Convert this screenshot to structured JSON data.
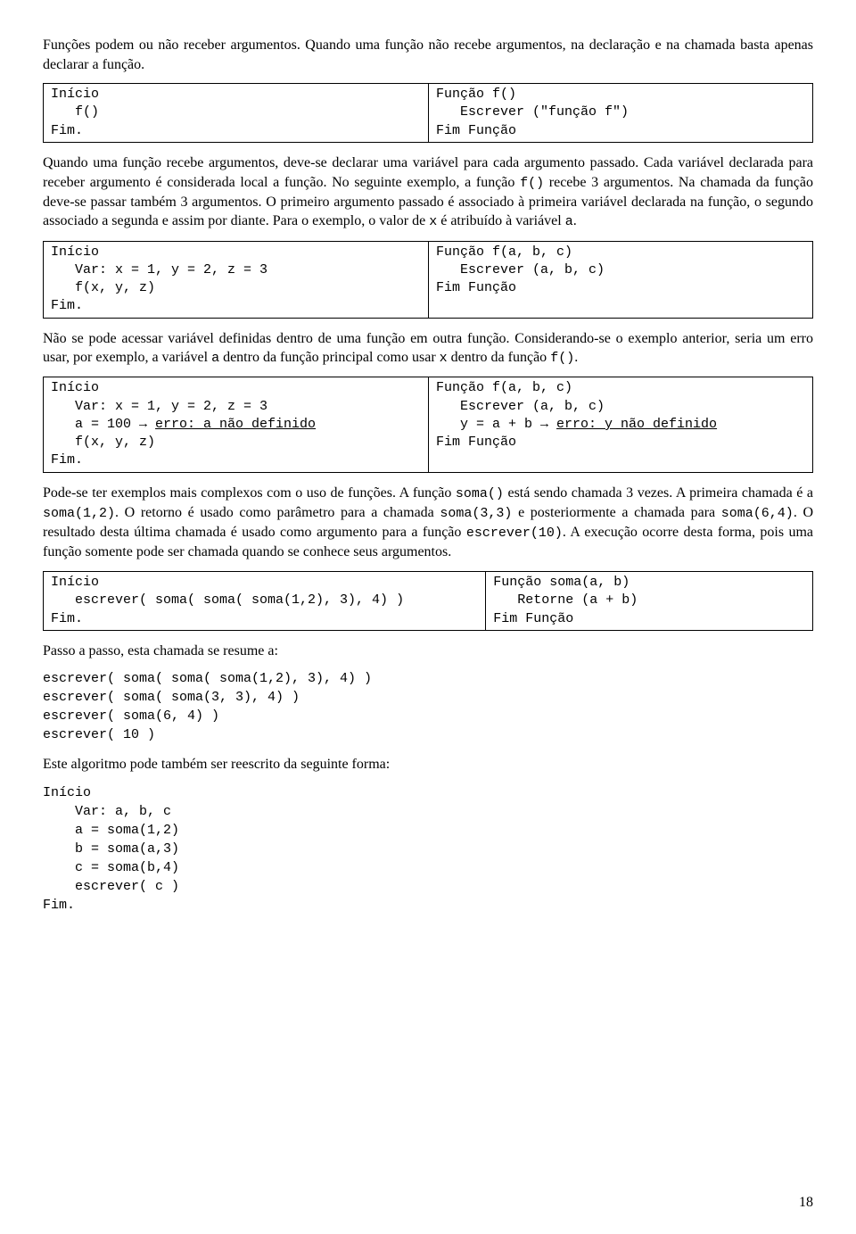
{
  "para1": "Funções podem ou não receber argumentos. Quando uma função não recebe argumentos, na declaração e na chamada basta apenas declarar a função.",
  "box1": {
    "left": "Início\n   f()\nFim.",
    "right": "Função f()\n   Escrever (\"função f\")\nFim Função"
  },
  "para2_a": "Quando uma função recebe argumentos, deve-se declarar uma variável para cada argumento passado. Cada variável declarada para receber argumento é considerada local a função. No seguinte exemplo, a função ",
  "para2_code1": "f()",
  "para2_b": " recebe 3 argumentos. Na chamada da função deve-se passar também 3 argumentos. O primeiro argumento passado é associado à primeira variável declarada na função, o segundo associado a segunda e assim por diante. Para o exemplo, o valor de ",
  "para2_code2": "x",
  "para2_c": " é atribuído à variável ",
  "para2_code3": "a",
  "para2_d": ".",
  "box2": {
    "left": "Início\n   Var: x = 1, y = 2, z = 3\n   f(x, y, z)\nFim.",
    "right": "Função f(a, b, c)\n   Escrever (a, b, c)\nFim Função"
  },
  "para3_a": "Não se pode acessar variável definidas dentro de uma função em outra função. Considerando-se o exemplo anterior, seria um erro usar, por exemplo, a variável ",
  "para3_code1": "a",
  "para3_b": " dentro da função principal como usar ",
  "para3_code2": "x",
  "para3_c": " dentro da função ",
  "para3_code3": "f()",
  "para3_d": ".",
  "box3": {
    "left": {
      "l1": "Início",
      "l2": "   Var: x = 1, y = 2, z = 3",
      "l3a": "   a = 100 → ",
      "l3b": "erro: a não definido",
      "l4": "   f(x, y, z)",
      "l5": "Fim."
    },
    "right": {
      "r1": "Função f(a, b, c)",
      "r2": "   Escrever (a, b, c)",
      "r3a": "   y = a + b → ",
      "r3b": "erro: y não definido",
      "r4": "Fim Função"
    }
  },
  "para4_a": "Pode-se ter exemplos mais complexos com o uso de funções. A função ",
  "para4_code1": "soma()",
  "para4_b": " está sendo chamada 3 vezes. A primeira chamada é a ",
  "para4_code2": "soma(1,2)",
  "para4_c": ". O retorno é usado como parâmetro para a chamada ",
  "para4_code3": "soma(3,3)",
  "para4_d": " e posteriormente a chamada para ",
  "para4_code4": "soma(6,4)",
  "para4_e": ". O resultado desta última chamada é usado como argumento para a função ",
  "para4_code5": "escrever(10)",
  "para4_f": ". A execução ocorre desta forma, pois uma função somente pode ser chamada quando se conhece seus argumentos.",
  "box4": {
    "left": "Início\n   escrever( soma( soma( soma(1,2), 3), 4) )\nFim.",
    "right": "Função soma(a, b)\n   Retorne (a + b)\nFim Função"
  },
  "para5": "Passo a passo, esta chamada se resume a:",
  "trace": "escrever( soma( soma( soma(1,2), 3), 4) )\nescrever( soma( soma(3, 3), 4) )\nescrever( soma(6, 4) )\nescrever( 10 )",
  "para6": "Este algoritmo pode também ser reescrito da seguinte forma:",
  "rewrite": "Início\n    Var: a, b, c\n    a = soma(1,2)\n    b = soma(a,3)\n    c = soma(b,4)\n    escrever( c )\nFim.",
  "pagenum": "18"
}
